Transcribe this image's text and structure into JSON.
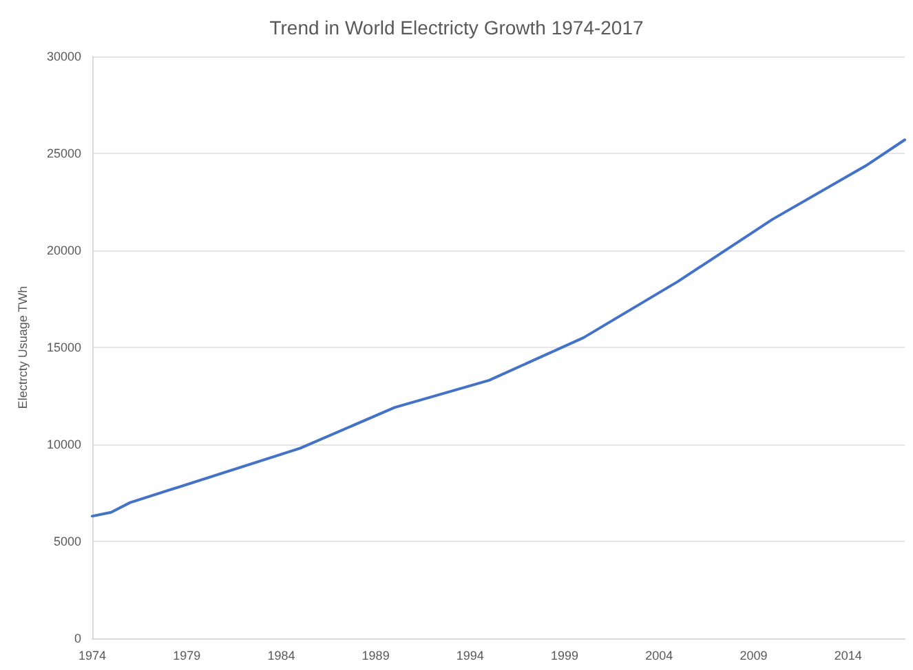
{
  "chart_data": {
    "type": "line",
    "title": "Trend in World Electricty Growth 1974-2017",
    "ylabel": "Electrcty Usuage TWh",
    "x": [
      1974,
      1975,
      1976,
      1985,
      1990,
      1995,
      2000,
      2005,
      2010,
      2015,
      2017
    ],
    "series": [
      {
        "color": "#4472c4",
        "values": [
          6300,
          6500,
          7000,
          9800,
          11900,
          13300,
          15500,
          18400,
          21600,
          24400,
          25700
        ]
      }
    ],
    "xlim": [
      1974,
      2017
    ],
    "xticks": [
      1974,
      1979,
      1984,
      1989,
      1994,
      1999,
      2004,
      2009,
      2014
    ],
    "ylim": [
      0,
      30000
    ],
    "yticks": [
      0,
      5000,
      10000,
      15000,
      20000,
      25000,
      30000
    ],
    "grid": "y",
    "marker": "none",
    "line_style": "solid"
  }
}
